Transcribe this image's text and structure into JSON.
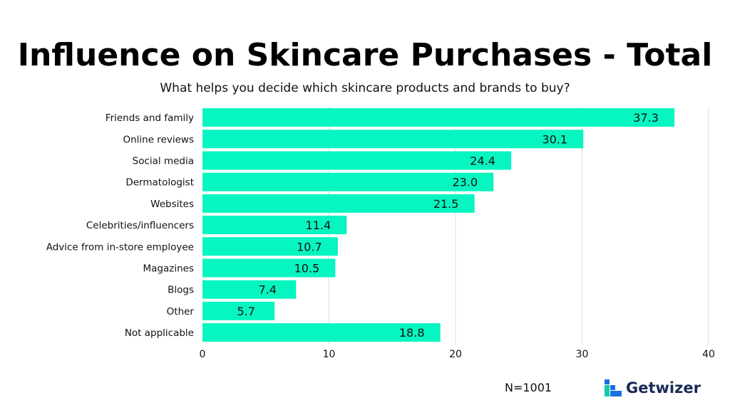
{
  "header": {
    "title": "Influence on Skincare Purchases - Total",
    "subtitle": "What helps you decide which skincare products and brands to buy?"
  },
  "footer": {
    "sample": "N=1001",
    "brand": "Getwizer"
  },
  "colors": {
    "bar": "#07f5c0",
    "grid": "#dddddd",
    "logo_blue": "#1b6fe0",
    "logo_teal": "#12c9a8",
    "logo_text": "#1a2a57"
  },
  "chart_data": {
    "type": "bar",
    "orientation": "horizontal",
    "categories": [
      "Friends and family",
      "Online reviews",
      "Social media",
      "Dermatologist",
      "Websites",
      "Celebrities/influencers",
      "Advice from in-store employee",
      "Magazines",
      "Blogs",
      "Other",
      "Not applicable"
    ],
    "values": [
      37.3,
      30.1,
      24.4,
      23.0,
      21.5,
      11.4,
      10.7,
      10.5,
      7.4,
      5.7,
      18.8
    ],
    "value_labels": [
      "37.3",
      "30.1",
      "24.4",
      "23.0",
      "21.5",
      "11.4",
      "10.7",
      "10.5",
      "7.4",
      "5.7",
      "18.8"
    ],
    "xticks": [
      "0",
      "10",
      "20",
      "30",
      "40"
    ],
    "xlim": [
      0,
      40
    ],
    "grid": true,
    "legend": "none"
  }
}
